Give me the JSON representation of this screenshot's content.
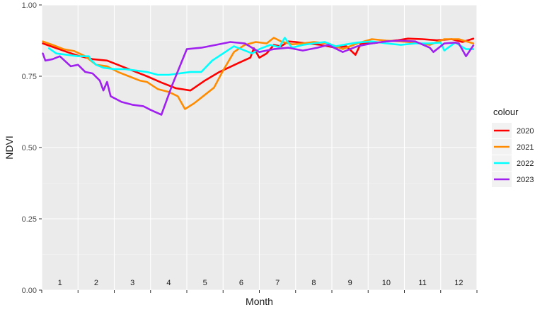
{
  "chart_data": {
    "type": "line",
    "xlabel": "Month",
    "ylabel": "NDVI",
    "ylim": [
      0,
      1
    ],
    "xlim": [
      0,
      12
    ],
    "y_ticks": [
      "0.00",
      "0.25",
      "0.50",
      "0.75",
      "1.00"
    ],
    "month_labels": [
      "1",
      "2",
      "3",
      "4",
      "5",
      "6",
      "7",
      "8",
      "9",
      "10",
      "11",
      "12"
    ],
    "grid": true,
    "legend_title": "colour",
    "legend_position": "right",
    "series": [
      {
        "name": "2020",
        "color": "#ff0000",
        "x": [
          0.03,
          0.3,
          0.7,
          1.0,
          1.4,
          1.8,
          2.1,
          2.5,
          2.9,
          3.3,
          3.7,
          4.1,
          4.5,
          4.9,
          5.4,
          5.75,
          5.85,
          6.0,
          6.2,
          6.4,
          6.6,
          6.8,
          7.0,
          7.3,
          7.7,
          8.1,
          8.4,
          8.65,
          8.8,
          9.1,
          9.5,
          9.8,
          10.1,
          10.5,
          10.9,
          11.3,
          11.6,
          11.9
        ],
        "y": [
          0.865,
          0.853,
          0.835,
          0.822,
          0.81,
          0.805,
          0.79,
          0.77,
          0.75,
          0.728,
          0.708,
          0.7,
          0.735,
          0.765,
          0.795,
          0.815,
          0.848,
          0.815,
          0.83,
          0.86,
          0.855,
          0.872,
          0.87,
          0.865,
          0.86,
          0.85,
          0.855,
          0.825,
          0.865,
          0.865,
          0.872,
          0.876,
          0.882,
          0.88,
          0.876,
          0.88,
          0.87,
          0.882
        ]
      },
      {
        "name": "2021",
        "color": "#ff8c00",
        "x": [
          0.03,
          0.3,
          0.6,
          0.9,
          1.2,
          1.5,
          1.8,
          2.1,
          2.4,
          2.7,
          2.9,
          3.2,
          3.5,
          3.75,
          3.95,
          4.2,
          4.5,
          4.75,
          5.0,
          5.3,
          5.6,
          5.9,
          6.2,
          6.4,
          6.6,
          6.9,
          7.2,
          7.5,
          7.9,
          8.3,
          8.7,
          9.1,
          9.5,
          9.9,
          10.3,
          10.7,
          11.1,
          11.5,
          11.9
        ],
        "y": [
          0.872,
          0.86,
          0.845,
          0.838,
          0.82,
          0.79,
          0.785,
          0.765,
          0.75,
          0.735,
          0.73,
          0.705,
          0.695,
          0.68,
          0.635,
          0.655,
          0.685,
          0.71,
          0.77,
          0.835,
          0.86,
          0.87,
          0.865,
          0.885,
          0.872,
          0.862,
          0.865,
          0.87,
          0.865,
          0.845,
          0.865,
          0.88,
          0.875,
          0.872,
          0.868,
          0.86,
          0.88,
          0.88,
          0.865
        ]
      },
      {
        "name": "2022",
        "color": "#00ffff",
        "x": [
          0.2,
          0.4,
          0.7,
          1.0,
          1.3,
          1.35,
          1.5,
          1.7,
          2.0,
          2.3,
          2.6,
          2.9,
          3.2,
          3.5,
          3.8,
          4.1,
          4.4,
          4.7,
          5.0,
          5.3,
          5.6,
          5.8,
          6.0,
          6.3,
          6.55,
          6.7,
          6.9,
          7.2,
          7.5,
          7.8,
          8.1,
          8.4,
          8.7,
          9.1,
          9.5,
          9.9,
          10.3,
          10.7,
          11.0,
          11.1,
          11.4,
          11.7,
          11.9
        ],
        "y": [
          0.848,
          0.83,
          0.825,
          0.82,
          0.82,
          0.808,
          0.79,
          0.78,
          0.775,
          0.775,
          0.77,
          0.765,
          0.755,
          0.755,
          0.76,
          0.765,
          0.765,
          0.805,
          0.83,
          0.855,
          0.84,
          0.83,
          0.845,
          0.86,
          0.852,
          0.885,
          0.85,
          0.86,
          0.865,
          0.87,
          0.855,
          0.862,
          0.868,
          0.872,
          0.865,
          0.86,
          0.865,
          0.865,
          0.868,
          0.84,
          0.868,
          0.845,
          0.845
        ]
      },
      {
        "name": "2023",
        "color": "#a020f0",
        "x": [
          0.03,
          0.1,
          0.3,
          0.5,
          0.8,
          1.0,
          1.2,
          1.4,
          1.6,
          1.7,
          1.8,
          1.9,
          2.2,
          2.5,
          2.8,
          3.0,
          3.3,
          3.6,
          4.0,
          4.4,
          4.8,
          5.2,
          5.6,
          6.0,
          6.4,
          6.8,
          7.2,
          7.6,
          7.9,
          8.3,
          8.7,
          9.1,
          9.5,
          9.9,
          10.3,
          10.7,
          10.8,
          11.1,
          11.4,
          11.5,
          11.7,
          11.9
        ],
        "y": [
          0.83,
          0.805,
          0.81,
          0.82,
          0.785,
          0.79,
          0.765,
          0.76,
          0.735,
          0.7,
          0.73,
          0.68,
          0.66,
          0.65,
          0.645,
          0.632,
          0.615,
          0.72,
          0.845,
          0.85,
          0.86,
          0.87,
          0.865,
          0.835,
          0.845,
          0.85,
          0.84,
          0.85,
          0.86,
          0.835,
          0.855,
          0.865,
          0.872,
          0.875,
          0.872,
          0.85,
          0.835,
          0.865,
          0.868,
          0.865,
          0.82,
          0.858
        ]
      }
    ]
  }
}
